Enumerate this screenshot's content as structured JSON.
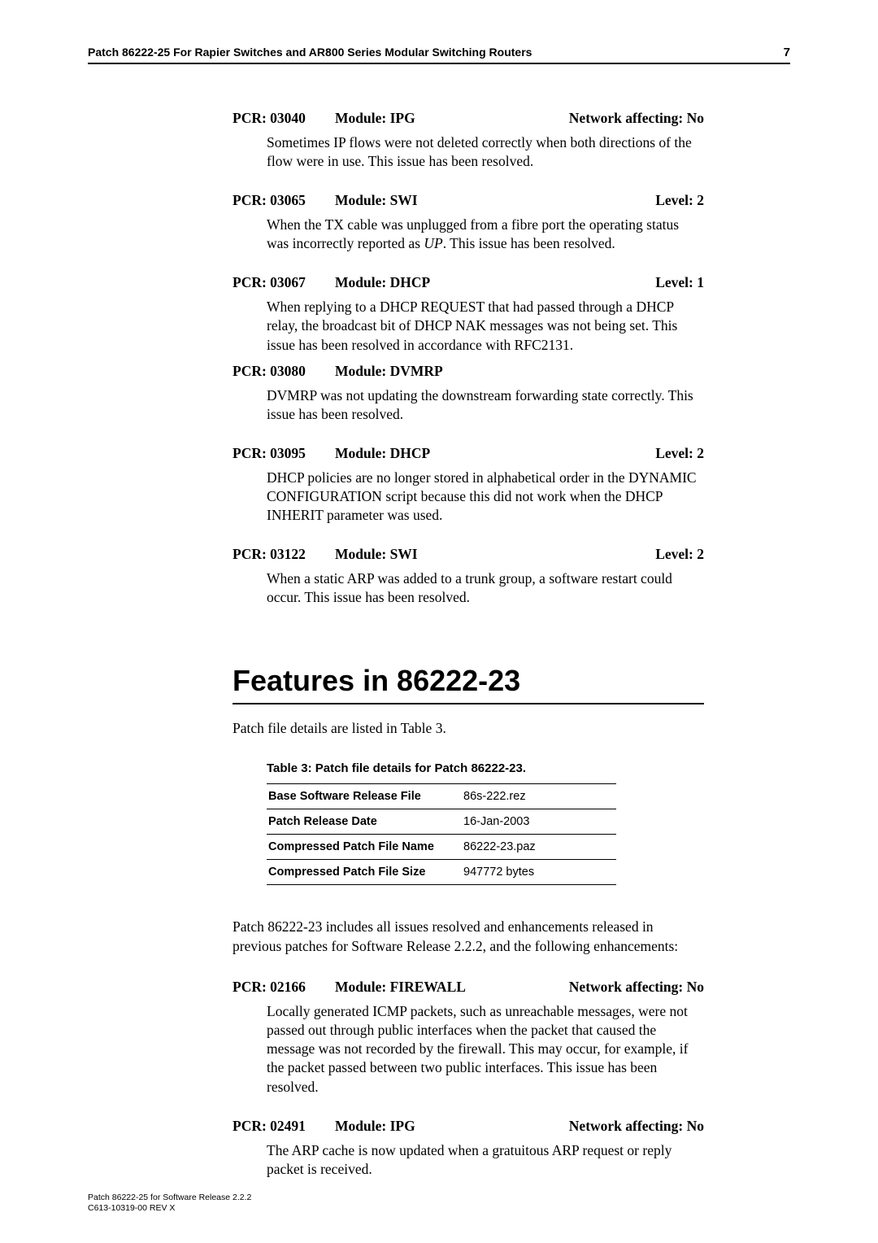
{
  "header": {
    "title": "Patch 86222-25 For Rapier Switches and AR800 Series Modular Switching Routers",
    "page_number": "7"
  },
  "pcrs_top": [
    {
      "pcr": "PCR: 03040",
      "module": "Module: IPG",
      "right": "Network affecting: No",
      "body": "Sometimes IP flows were not deleted correctly when both directions of the flow were in use. This issue has been resolved."
    },
    {
      "pcr": "PCR: 03065",
      "module": "Module: SWI",
      "right": "Level: 2",
      "body_html": "When the TX cable was unplugged from a fibre port the operating status was incorrectly reported as <span class=\"italic\">UP</span>. This issue has been resolved."
    },
    {
      "pcr": "PCR: 03067",
      "module": "Module: DHCP",
      "right": "Level: 1",
      "body": "When replying to a DHCP REQUEST that had passed through a DHCP relay, the broadcast bit of DHCP NAK messages was not being set. This issue has been resolved in accordance with RFC2131."
    },
    {
      "pcr": "PCR: 03080",
      "module": "Module: DVMRP",
      "right": "",
      "body": "DVMRP was not updating the downstream forwarding state correctly. This issue has been resolved.",
      "tight_top": true
    },
    {
      "pcr": "PCR: 03095",
      "module": "Module: DHCP",
      "right": "Level: 2",
      "body": "DHCP policies are no longer stored in alphabetical order in the DYNAMIC CONFIGURATION script because this did not work when the DHCP INHERIT parameter was used."
    },
    {
      "pcr": "PCR: 03122",
      "module": "Module: SWI",
      "right": "Level: 2",
      "body": "When a static ARP was added to a trunk group, a software restart could occur. This issue has been resolved."
    }
  ],
  "section": {
    "title": "Features in 86222-23",
    "intro1": "Patch file details are listed in Table 3.",
    "table_caption": "Table 3: Patch file details for Patch 86222-23.",
    "table_rows": [
      {
        "key": "Base Software Release File",
        "val": "86s-222.rez"
      },
      {
        "key": "Patch Release Date",
        "val": "16-Jan-2003"
      },
      {
        "key": "Compressed Patch File Name",
        "val": "86222-23.paz"
      },
      {
        "key": "Compressed Patch File Size",
        "val": "947772 bytes"
      }
    ],
    "intro2": "Patch 86222-23 includes all issues resolved and enhancements released in previous patches for Software Release 2.2.2, and the following enhancements:"
  },
  "pcrs_bottom": [
    {
      "pcr": "PCR: 02166",
      "module": "Module: FIREWALL",
      "right": "Network affecting: No",
      "body": "Locally generated ICMP packets, such as unreachable messages, were not passed out through public interfaces when the packet that caused the message was not recorded by the firewall. This may occur, for example, if the packet passed between two public interfaces. This issue has been resolved."
    },
    {
      "pcr": "PCR: 02491",
      "module": "Module: IPG",
      "right": "Network affecting: No",
      "body": "The ARP cache is now updated when a gratuitous ARP request or reply packet is received."
    }
  ],
  "footer": {
    "line1": "Patch 86222-25 for Software Release 2.2.2",
    "line2": "C613-10319-00 REV X"
  },
  "colors": {
    "text": "#000000",
    "background": "#ffffff",
    "rule": "#000000"
  }
}
